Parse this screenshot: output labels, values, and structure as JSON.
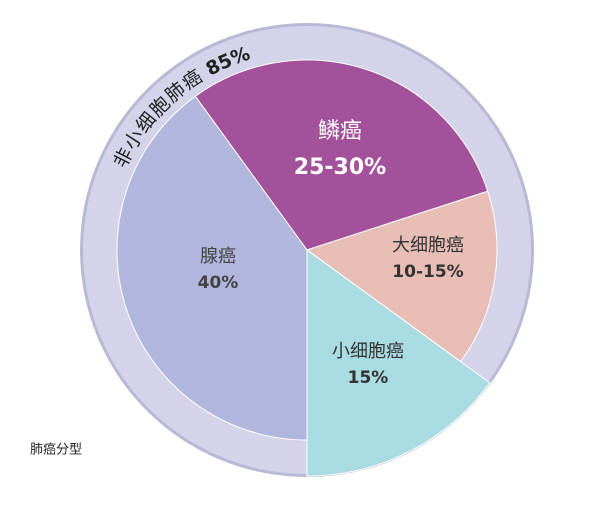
{
  "chart_data": {
    "type": "pie",
    "caption": "肺癌分型",
    "categories": [
      "鳞癌",
      "大细胞癌",
      "小细胞癌",
      "腺癌"
    ],
    "values": [
      30,
      15,
      15,
      40
    ],
    "value_labels": [
      "25-30%",
      "10-15%",
      "15%",
      "40%"
    ],
    "colors": [
      "#a4519b",
      "#e7bdb6",
      "#a9dbe3",
      "#b1b6dc"
    ],
    "ring": {
      "name": "非小细胞肺癌",
      "value": 85,
      "value_label": "85%",
      "color": "#d3d3e9"
    }
  }
}
